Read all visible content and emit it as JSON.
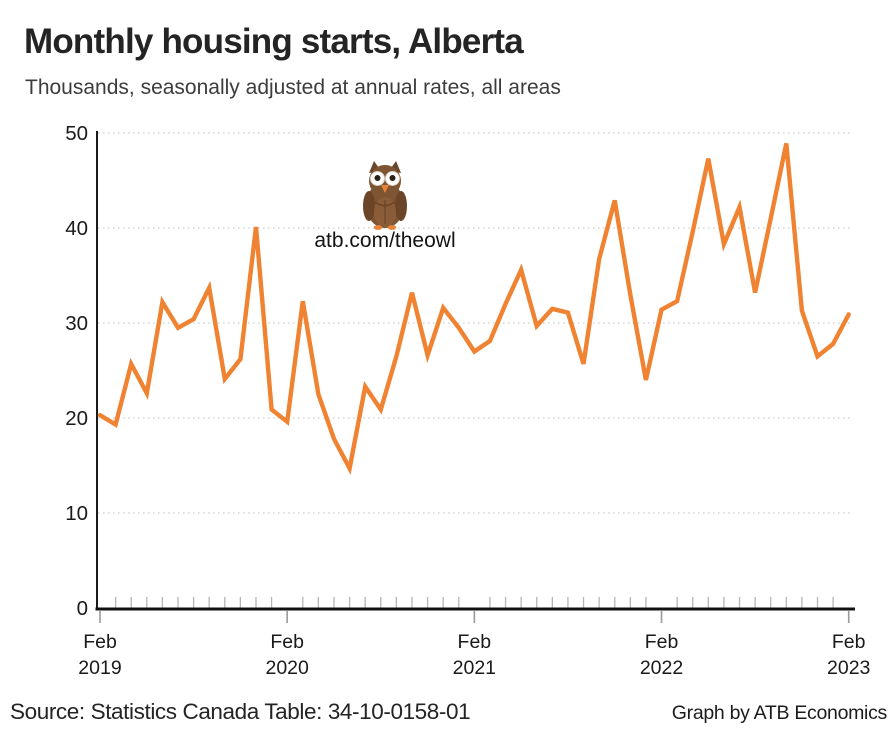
{
  "header": {
    "title": "Monthly housing starts, Alberta",
    "subtitle": "Thousands, seasonally adjusted at annual rates, all areas"
  },
  "watermark": {
    "owl_icon": "owl-icon",
    "label": "atb.com/theowl"
  },
  "footer": {
    "source": "Source: Statistics Canada Table: 34-10-0158-01",
    "credit": "Graph by ATB Economics"
  },
  "colors": {
    "line": "#F08332",
    "axis": "#1a1a1a",
    "grid": "#cfcfcf",
    "minor_tick": "#b5b5b5",
    "major_tick": "#9a9a9a",
    "owl_body": "#7E5533",
    "owl_wing": "#6B4527",
    "owl_accent": "#E8833A"
  },
  "chart_data": {
    "type": "line",
    "title": "Monthly housing starts, Alberta",
    "subtitle": "Thousands, seasonally adjusted at annual rates, all areas",
    "unit": "thousands of units, SAAR",
    "series_color": "#F08332",
    "grid": {
      "horizontal": true,
      "style": "dotted"
    },
    "ylim": [
      0,
      50
    ],
    "yticks": [
      0,
      10,
      20,
      30,
      40,
      50
    ],
    "x": [
      "Feb 2019",
      "Mar 2019",
      "Apr 2019",
      "May 2019",
      "Jun 2019",
      "Jul 2019",
      "Aug 2019",
      "Sep 2019",
      "Oct 2019",
      "Nov 2019",
      "Dec 2019",
      "Jan 2020",
      "Feb 2020",
      "Mar 2020",
      "Apr 2020",
      "May 2020",
      "Jun 2020",
      "Jul 2020",
      "Aug 2020",
      "Sep 2020",
      "Oct 2020",
      "Nov 2020",
      "Dec 2020",
      "Jan 2021",
      "Feb 2021",
      "Mar 2021",
      "Apr 2021",
      "May 2021",
      "Jun 2021",
      "Jul 2021",
      "Aug 2021",
      "Sep 2021",
      "Oct 2021",
      "Nov 2021",
      "Dec 2021",
      "Jan 2022",
      "Feb 2022",
      "Mar 2022",
      "Apr 2022",
      "May 2022",
      "Jun 2022",
      "Jul 2022",
      "Aug 2022",
      "Sep 2022",
      "Oct 2022",
      "Nov 2022",
      "Dec 2022",
      "Jan 2023",
      "Feb 2023"
    ],
    "values": [
      20.3,
      19.3,
      25.7,
      22.6,
      32.2,
      29.5,
      30.4,
      33.7,
      24.1,
      26.2,
      40.1,
      20.9,
      19.6,
      32.3,
      22.5,
      17.8,
      14.7,
      23.3,
      20.9,
      26.5,
      33.2,
      26.6,
      31.6,
      29.5,
      27.0,
      28.1,
      32.0,
      35.6,
      29.7,
      31.5,
      31.1,
      25.7,
      36.7,
      42.9,
      33.0,
      24.0,
      31.4,
      32.3,
      39.6,
      47.3,
      38.3,
      42.2,
      33.2,
      41.0,
      48.9,
      31.3,
      26.5,
      27.8,
      30.9
    ],
    "xticks_major": [
      {
        "index": 0,
        "line1": "Feb",
        "line2": "2019"
      },
      {
        "index": 12,
        "line1": "Feb",
        "line2": "2020"
      },
      {
        "index": 24,
        "line1": "Feb",
        "line2": "2021"
      },
      {
        "index": 36,
        "line1": "Feb",
        "line2": "2022"
      },
      {
        "index": 48,
        "line1": "Feb",
        "line2": "2023"
      }
    ]
  }
}
